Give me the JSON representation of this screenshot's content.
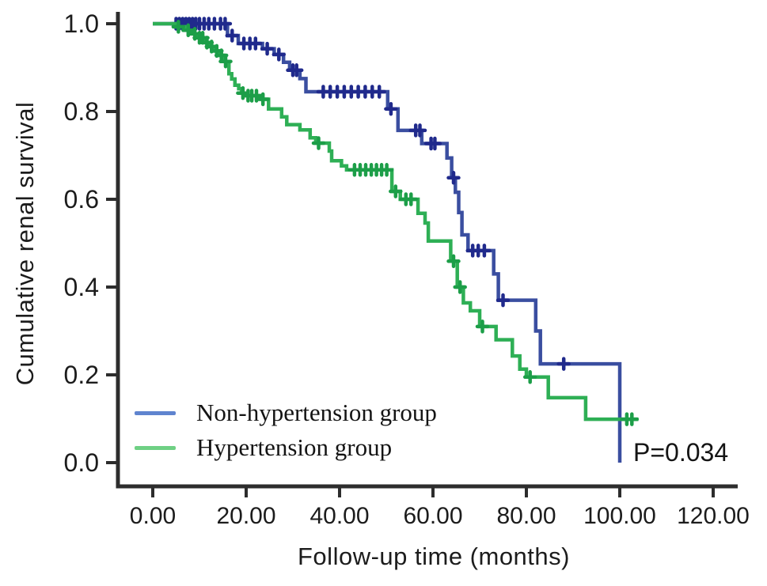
{
  "chart_data": {
    "type": "line",
    "subtype": "kaplan-meier-step",
    "title": "",
    "xlabel": "Follow-up time (months)",
    "ylabel": "Cumulative renal survival",
    "annotation": "P=0.034",
    "xlim": [
      0,
      120
    ],
    "ylim": [
      0.0,
      1.0
    ],
    "grid": "off",
    "legend_position": "lower-left",
    "x_ticks": [
      {
        "value": 0,
        "label": "0.00"
      },
      {
        "value": 20,
        "label": "20.00"
      },
      {
        "value": 40,
        "label": "40.00"
      },
      {
        "value": 60,
        "label": "60.00"
      },
      {
        "value": 80,
        "label": "80.00"
      },
      {
        "value": 100,
        "label": "100.00"
      },
      {
        "value": 120,
        "label": "120.00"
      }
    ],
    "y_ticks": [
      {
        "value": 0.0,
        "label": "0.0"
      },
      {
        "value": 0.2,
        "label": "0.2"
      },
      {
        "value": 0.4,
        "label": "0.4"
      },
      {
        "value": 0.6,
        "label": "0.6"
      },
      {
        "value": 0.8,
        "label": "0.8"
      },
      {
        "value": 1.0,
        "label": "1.0"
      }
    ],
    "series": [
      {
        "name": "Non-hypertension group",
        "line_color": "#3a4ea0",
        "censor_color": "#202a8c",
        "legend_swatch_color": "#5f84cf",
        "steps": [
          [
            0,
            1.0
          ],
          [
            16,
            0.973
          ],
          [
            18.3,
            0.955
          ],
          [
            23.5,
            0.943
          ],
          [
            26,
            0.93
          ],
          [
            28,
            0.912
          ],
          [
            29.3,
            0.894
          ],
          [
            31.5,
            0.875
          ],
          [
            32.8,
            0.845
          ],
          [
            50.3,
            0.806
          ],
          [
            52.5,
            0.757
          ],
          [
            57.6,
            0.727
          ],
          [
            63,
            0.694
          ],
          [
            64,
            0.649
          ],
          [
            64.8,
            0.616
          ],
          [
            65.5,
            0.57
          ],
          [
            66.2,
            0.519
          ],
          [
            67.5,
            0.483
          ],
          [
            73,
            0.43
          ],
          [
            74,
            0.37
          ],
          [
            82,
            0.3
          ],
          [
            83,
            0.225
          ],
          [
            100,
            0.0
          ]
        ],
        "censors": [
          [
            5,
            1.0
          ],
          [
            5.7,
            1.0
          ],
          [
            6.4,
            1.0
          ],
          [
            7.1,
            1.0
          ],
          [
            7.8,
            1.0
          ],
          [
            8.5,
            1.0
          ],
          [
            9.2,
            1.0
          ],
          [
            10,
            1.0
          ],
          [
            11,
            1.0
          ],
          [
            12,
            1.0
          ],
          [
            13.2,
            1.0
          ],
          [
            14.5,
            1.0
          ],
          [
            15.5,
            1.0
          ],
          [
            17,
            0.973
          ],
          [
            19.5,
            0.955
          ],
          [
            20.8,
            0.955
          ],
          [
            22,
            0.955
          ],
          [
            24.5,
            0.943
          ],
          [
            27,
            0.93
          ],
          [
            30,
            0.894
          ],
          [
            30.8,
            0.894
          ],
          [
            36.5,
            0.845
          ],
          [
            38,
            0.845
          ],
          [
            39.5,
            0.845
          ],
          [
            41,
            0.845
          ],
          [
            42.5,
            0.845
          ],
          [
            44,
            0.845
          ],
          [
            45.5,
            0.845
          ],
          [
            47,
            0.845
          ],
          [
            48.5,
            0.845
          ],
          [
            51,
            0.806
          ],
          [
            56.3,
            0.757
          ],
          [
            57.2,
            0.757
          ],
          [
            59.6,
            0.727
          ],
          [
            60.4,
            0.727
          ],
          [
            64.4,
            0.649
          ],
          [
            68.5,
            0.483
          ],
          [
            69.7,
            0.483
          ],
          [
            71,
            0.483
          ],
          [
            75,
            0.37
          ],
          [
            88,
            0.225
          ]
        ]
      },
      {
        "name": "Hypertension group",
        "line_color": "#2eaf55",
        "censor_color": "#1c9e48",
        "legend_swatch_color": "#6fd084",
        "steps": [
          [
            0,
            1.0
          ],
          [
            5,
            0.993
          ],
          [
            7,
            0.985
          ],
          [
            8.7,
            0.977
          ],
          [
            9.6,
            0.968
          ],
          [
            11,
            0.957
          ],
          [
            12.2,
            0.948
          ],
          [
            13.2,
            0.938
          ],
          [
            14.3,
            0.928
          ],
          [
            15.2,
            0.914
          ],
          [
            16.3,
            0.886
          ],
          [
            16.9,
            0.874
          ],
          [
            17.6,
            0.86
          ],
          [
            18.4,
            0.852
          ],
          [
            19,
            0.842
          ],
          [
            19.8,
            0.836
          ],
          [
            23.2,
            0.828
          ],
          [
            24.8,
            0.806
          ],
          [
            27.6,
            0.788
          ],
          [
            28.7,
            0.77
          ],
          [
            31.5,
            0.758
          ],
          [
            33.7,
            0.74
          ],
          [
            34.9,
            0.728
          ],
          [
            37.8,
            0.71
          ],
          [
            38.3,
            0.688
          ],
          [
            40.4,
            0.676
          ],
          [
            41.5,
            0.667
          ],
          [
            51.2,
            0.618
          ],
          [
            53,
            0.6
          ],
          [
            56.8,
            0.568
          ],
          [
            58.3,
            0.546
          ],
          [
            59,
            0.505
          ],
          [
            63.8,
            0.459
          ],
          [
            65.2,
            0.4
          ],
          [
            66.5,
            0.364
          ],
          [
            68,
            0.346
          ],
          [
            70,
            0.31
          ],
          [
            73.5,
            0.28
          ],
          [
            77,
            0.243
          ],
          [
            78.6,
            0.213
          ],
          [
            80,
            0.195
          ],
          [
            84.7,
            0.148
          ],
          [
            92.7,
            0.099
          ],
          [
            104,
            0.099
          ]
        ],
        "censors": [
          [
            5.5,
            0.993
          ],
          [
            7.6,
            0.985
          ],
          [
            9,
            0.977
          ],
          [
            10,
            0.968
          ],
          [
            10.7,
            0.968
          ],
          [
            11.6,
            0.957
          ],
          [
            12.6,
            0.948
          ],
          [
            13.7,
            0.938
          ],
          [
            14.7,
            0.928
          ],
          [
            15.6,
            0.914
          ],
          [
            19.3,
            0.842
          ],
          [
            20.4,
            0.836
          ],
          [
            21.2,
            0.836
          ],
          [
            22.2,
            0.836
          ],
          [
            23.6,
            0.828
          ],
          [
            35.5,
            0.728
          ],
          [
            43.2,
            0.667
          ],
          [
            44.4,
            0.667
          ],
          [
            45.6,
            0.667
          ],
          [
            46.8,
            0.667
          ],
          [
            47.9,
            0.667
          ],
          [
            49,
            0.667
          ],
          [
            50.1,
            0.667
          ],
          [
            52,
            0.618
          ],
          [
            54.2,
            0.6
          ],
          [
            55.3,
            0.6
          ],
          [
            64.4,
            0.459
          ],
          [
            65.8,
            0.4
          ],
          [
            70.6,
            0.31
          ],
          [
            80.8,
            0.195
          ],
          [
            101.5,
            0.099
          ],
          [
            102.6,
            0.099
          ]
        ]
      }
    ],
    "axis_color": "#2d2d2d"
  },
  "legend": {
    "items": [
      {
        "label": "Non-hypertension group"
      },
      {
        "label": "Hypertension group"
      }
    ]
  }
}
